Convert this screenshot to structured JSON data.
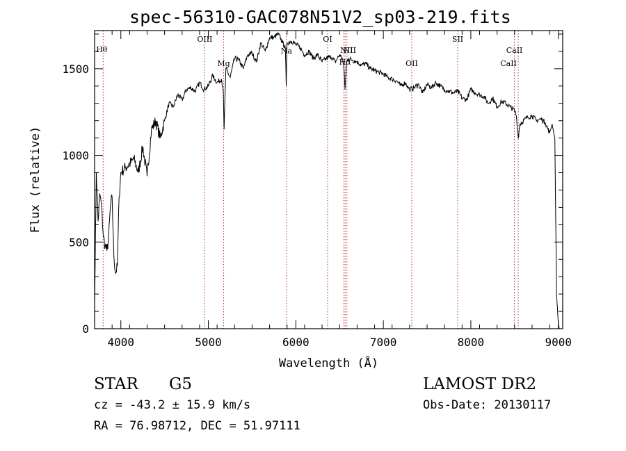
{
  "chart_data": {
    "type": "line",
    "title": "spec-56310-GAC078N51V2_sp03-219.fits",
    "xlabel": "Wavelength (Å)",
    "ylabel": "Flux (relative)",
    "xlim": [
      3700,
      9050
    ],
    "ylim": [
      0,
      1720
    ],
    "xticks": [
      4000,
      5000,
      6000,
      7000,
      8000,
      9000
    ],
    "yticks": [
      0,
      500,
      1000,
      1500
    ],
    "series": [
      {
        "x": [
          3700,
          3720,
          3740,
          3760,
          3780,
          3800,
          3820,
          3840,
          3860,
          3880,
          3900,
          3920,
          3940,
          3960,
          3980,
          4000,
          4050,
          4100,
          4150,
          4200,
          4250,
          4300,
          4350,
          4400,
          4450,
          4500,
          4550,
          4600,
          4650,
          4700,
          4750,
          4800,
          4850,
          4900,
          4950,
          5000,
          5050,
          5100,
          5150,
          5170,
          5180,
          5200,
          5250,
          5300,
          5350,
          5400,
          5450,
          5500,
          5550,
          5600,
          5650,
          5700,
          5750,
          5800,
          5850,
          5880,
          5890,
          5900,
          5950,
          6000,
          6050,
          6100,
          6150,
          6200,
          6250,
          6300,
          6350,
          6400,
          6450,
          6500,
          6530,
          6550,
          6563,
          6580,
          6600,
          6650,
          6700,
          6750,
          6800,
          6850,
          6900,
          6950,
          7000,
          7050,
          7100,
          7150,
          7200,
          7250,
          7300,
          7350,
          7400,
          7450,
          7500,
          7550,
          7600,
          7650,
          7700,
          7750,
          7800,
          7850,
          7900,
          7950,
          8000,
          8050,
          8100,
          8150,
          8200,
          8250,
          8300,
          8350,
          8400,
          8450,
          8498,
          8520,
          8542,
          8560,
          8600,
          8650,
          8700,
          8750,
          8800,
          8850,
          8900,
          8930,
          8960,
          8980,
          9000,
          9010
        ],
        "y": [
          150,
          900,
          620,
          780,
          700,
          530,
          480,
          450,
          520,
          700,
          760,
          420,
          320,
          360,
          760,
          900,
          930,
          950,
          980,
          900,
          1050,
          880,
          1150,
          1200,
          1100,
          1200,
          1300,
          1280,
          1350,
          1320,
          1380,
          1390,
          1370,
          1420,
          1380,
          1400,
          1460,
          1420,
          1440,
          1380,
          1150,
          1500,
          1450,
          1560,
          1550,
          1500,
          1580,
          1590,
          1540,
          1650,
          1600,
          1680,
          1680,
          1700,
          1650,
          1620,
          1400,
          1650,
          1660,
          1640,
          1620,
          1580,
          1600,
          1560,
          1580,
          1540,
          1560,
          1570,
          1540,
          1580,
          1560,
          1500,
          1380,
          1540,
          1560,
          1550,
          1540,
          1520,
          1530,
          1500,
          1490,
          1480,
          1470,
          1450,
          1440,
          1430,
          1400,
          1420,
          1380,
          1390,
          1410,
          1360,
          1410,
          1390,
          1420,
          1400,
          1380,
          1370,
          1360,
          1370,
          1330,
          1320,
          1380,
          1360,
          1350,
          1340,
          1300,
          1330,
          1280,
          1310,
          1300,
          1280,
          1260,
          1230,
          1100,
          1180,
          1200,
          1220,
          1230,
          1200,
          1210,
          1190,
          1130,
          1180,
          1100,
          200,
          30,
          0
        ]
      }
    ],
    "lines": [
      {
        "label": "Hθ",
        "x": 3798
      },
      {
        "label": "OIII",
        "x": 4959
      },
      {
        "label": "Mg",
        "x": 5175
      },
      {
        "label": "Na",
        "x": 5893
      },
      {
        "label": "OI",
        "x": 6363
      },
      {
        "label": "NII",
        "x": 6548
      },
      {
        "label": "Hα",
        "x": 6563
      },
      {
        "label": "NII",
        "x": 6584
      },
      {
        "label": "OII",
        "x": 7325
      },
      {
        "label": "SII",
        "x": 7850
      },
      {
        "label": "CaII",
        "x": 8498
      },
      {
        "label": "CaII",
        "x": 8542
      }
    ]
  },
  "info": {
    "class": "STAR",
    "subclass": "G5",
    "survey": "LAMOST DR2",
    "cz": "cz = -43.2 ± 15.9 km/s",
    "obs_date": "Obs-Date: 20130117",
    "coords": "RA =  76.98712, DEC =  51.97111"
  }
}
